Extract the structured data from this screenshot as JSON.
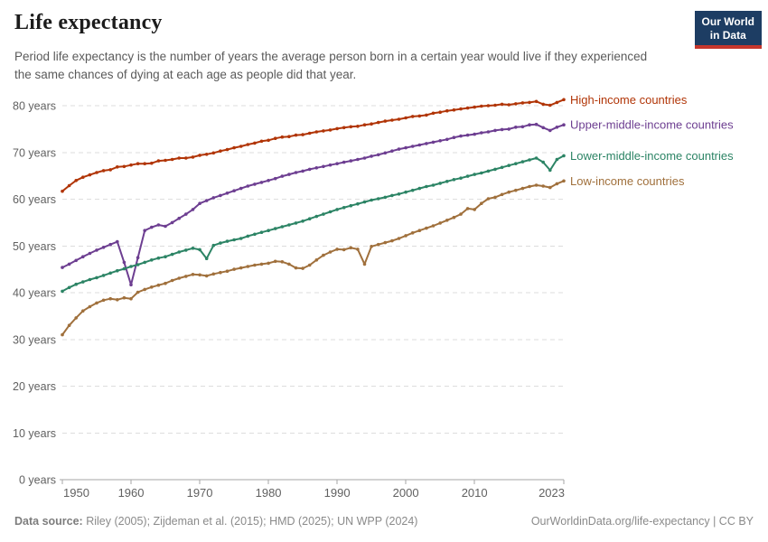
{
  "header": {
    "title": "Life expectancy",
    "subtitle": "Period life expectancy is the number of years the average person born in a certain year would live if they experienced the same chances of dying at each age as people did that year.",
    "logo_line1": "Our World",
    "logo_line2": "in Data"
  },
  "footer": {
    "source_label": "Data source:",
    "source_text": " Riley (2005); Zijdeman et al. (2015); HMD (2025); UN WPP (2024)",
    "rights": "OurWorldinData.org/life-expectancy | CC BY"
  },
  "colors": {
    "grid": "#dddddd",
    "axis": "#a6a6a6",
    "tick_text": "#616161",
    "logo_bg": "#1D3D63",
    "logo_bar": "#C5362C"
  },
  "chart_data": {
    "type": "line",
    "title": "Life expectancy",
    "xlabel": "",
    "ylabel": "",
    "ylim": [
      0,
      80
    ],
    "xlim": [
      1950,
      2023
    ],
    "grid": "horizontal-dashed",
    "legend_position": "right-of-line-ends",
    "ytick_suffix": " years",
    "yticks": [
      0,
      10,
      20,
      30,
      40,
      50,
      60,
      70,
      80
    ],
    "xticks": [
      1950,
      1960,
      1970,
      1980,
      1990,
      2000,
      2010,
      2023
    ],
    "x": [
      1950,
      1951,
      1952,
      1953,
      1954,
      1955,
      1956,
      1957,
      1958,
      1959,
      1960,
      1961,
      1962,
      1963,
      1964,
      1965,
      1966,
      1967,
      1968,
      1969,
      1970,
      1971,
      1972,
      1973,
      1974,
      1975,
      1976,
      1977,
      1978,
      1979,
      1980,
      1981,
      1982,
      1983,
      1984,
      1985,
      1986,
      1987,
      1988,
      1989,
      1990,
      1991,
      1992,
      1993,
      1994,
      1995,
      1996,
      1997,
      1998,
      1999,
      2000,
      2001,
      2002,
      2003,
      2004,
      2005,
      2006,
      2007,
      2008,
      2009,
      2010,
      2011,
      2012,
      2013,
      2014,
      2015,
      2016,
      2017,
      2018,
      2019,
      2020,
      2021,
      2022,
      2023
    ],
    "series": [
      {
        "id": "high-income",
        "name": "High-income countries",
        "color": "#B13507",
        "values": [
          61.7,
          62.9,
          64.0,
          64.7,
          65.2,
          65.7,
          66.1,
          66.3,
          66.9,
          67.0,
          67.3,
          67.6,
          67.6,
          67.7,
          68.2,
          68.3,
          68.5,
          68.8,
          68.8,
          69.0,
          69.4,
          69.6,
          69.9,
          70.3,
          70.6,
          71.0,
          71.3,
          71.7,
          72.0,
          72.4,
          72.6,
          73.0,
          73.3,
          73.4,
          73.7,
          73.8,
          74.1,
          74.4,
          74.6,
          74.8,
          75.1,
          75.3,
          75.5,
          75.6,
          75.9,
          76.1,
          76.4,
          76.7,
          76.9,
          77.1,
          77.4,
          77.7,
          77.8,
          78.0,
          78.4,
          78.6,
          78.9,
          79.1,
          79.3,
          79.5,
          79.7,
          79.9,
          80.0,
          80.1,
          80.3,
          80.2,
          80.4,
          80.6,
          80.7,
          80.9,
          80.3,
          80.1,
          80.7,
          81.3
        ]
      },
      {
        "id": "upper-middle-income",
        "name": "Upper-middle-income countries",
        "color": "#6D3E91",
        "values": [
          45.4,
          46.1,
          46.9,
          47.7,
          48.4,
          49.1,
          49.7,
          50.3,
          50.9,
          46.5,
          41.7,
          47.5,
          53.3,
          54.0,
          54.5,
          54.2,
          55.0,
          55.9,
          56.8,
          57.8,
          59.1,
          59.7,
          60.3,
          60.8,
          61.3,
          61.8,
          62.3,
          62.8,
          63.2,
          63.6,
          64.0,
          64.4,
          64.9,
          65.3,
          65.7,
          66.0,
          66.4,
          66.7,
          67.0,
          67.3,
          67.6,
          67.9,
          68.2,
          68.5,
          68.8,
          69.2,
          69.5,
          69.9,
          70.3,
          70.7,
          71.0,
          71.3,
          71.6,
          71.9,
          72.2,
          72.5,
          72.8,
          73.2,
          73.5,
          73.7,
          73.9,
          74.2,
          74.4,
          74.7,
          74.9,
          75.0,
          75.4,
          75.5,
          75.9,
          76.0,
          75.3,
          74.7,
          75.4,
          75.9
        ]
      },
      {
        "id": "lower-middle-income",
        "name": "Lower-middle-income countries",
        "color": "#2C8465",
        "values": [
          40.3,
          41.1,
          41.8,
          42.3,
          42.8,
          43.2,
          43.7,
          44.2,
          44.7,
          45.1,
          45.6,
          46.0,
          46.5,
          47.0,
          47.4,
          47.7,
          48.2,
          48.7,
          49.1,
          49.5,
          49.2,
          47.3,
          50.1,
          50.6,
          51.0,
          51.3,
          51.6,
          52.1,
          52.5,
          52.9,
          53.3,
          53.7,
          54.1,
          54.5,
          54.9,
          55.3,
          55.8,
          56.3,
          56.8,
          57.3,
          57.8,
          58.2,
          58.6,
          59.0,
          59.4,
          59.8,
          60.1,
          60.4,
          60.8,
          61.1,
          61.5,
          61.9,
          62.3,
          62.7,
          63.0,
          63.4,
          63.8,
          64.2,
          64.5,
          64.9,
          65.3,
          65.6,
          66.0,
          66.4,
          66.8,
          67.2,
          67.6,
          68.0,
          68.4,
          68.8,
          67.9,
          66.2,
          68.5,
          69.3
        ]
      },
      {
        "id": "low-income",
        "name": "Low-income countries",
        "color": "#A0703C",
        "values": [
          31.0,
          33.0,
          34.6,
          36.1,
          37.0,
          37.8,
          38.4,
          38.7,
          38.5,
          38.9,
          38.7,
          40.1,
          40.7,
          41.2,
          41.6,
          42.0,
          42.6,
          43.1,
          43.5,
          43.9,
          43.8,
          43.6,
          44.0,
          44.3,
          44.6,
          45.0,
          45.3,
          45.6,
          45.9,
          46.1,
          46.3,
          46.7,
          46.6,
          46.1,
          45.3,
          45.2,
          45.9,
          47.0,
          48.0,
          48.7,
          49.3,
          49.2,
          49.6,
          49.3,
          46.1,
          49.9,
          50.3,
          50.7,
          51.1,
          51.6,
          52.2,
          52.8,
          53.3,
          53.8,
          54.3,
          54.9,
          55.5,
          56.1,
          56.8,
          58.0,
          57.8,
          59.1,
          60.1,
          60.4,
          61.0,
          61.5,
          61.9,
          62.3,
          62.7,
          63.0,
          62.8,
          62.5,
          63.3,
          63.9
        ]
      }
    ]
  }
}
